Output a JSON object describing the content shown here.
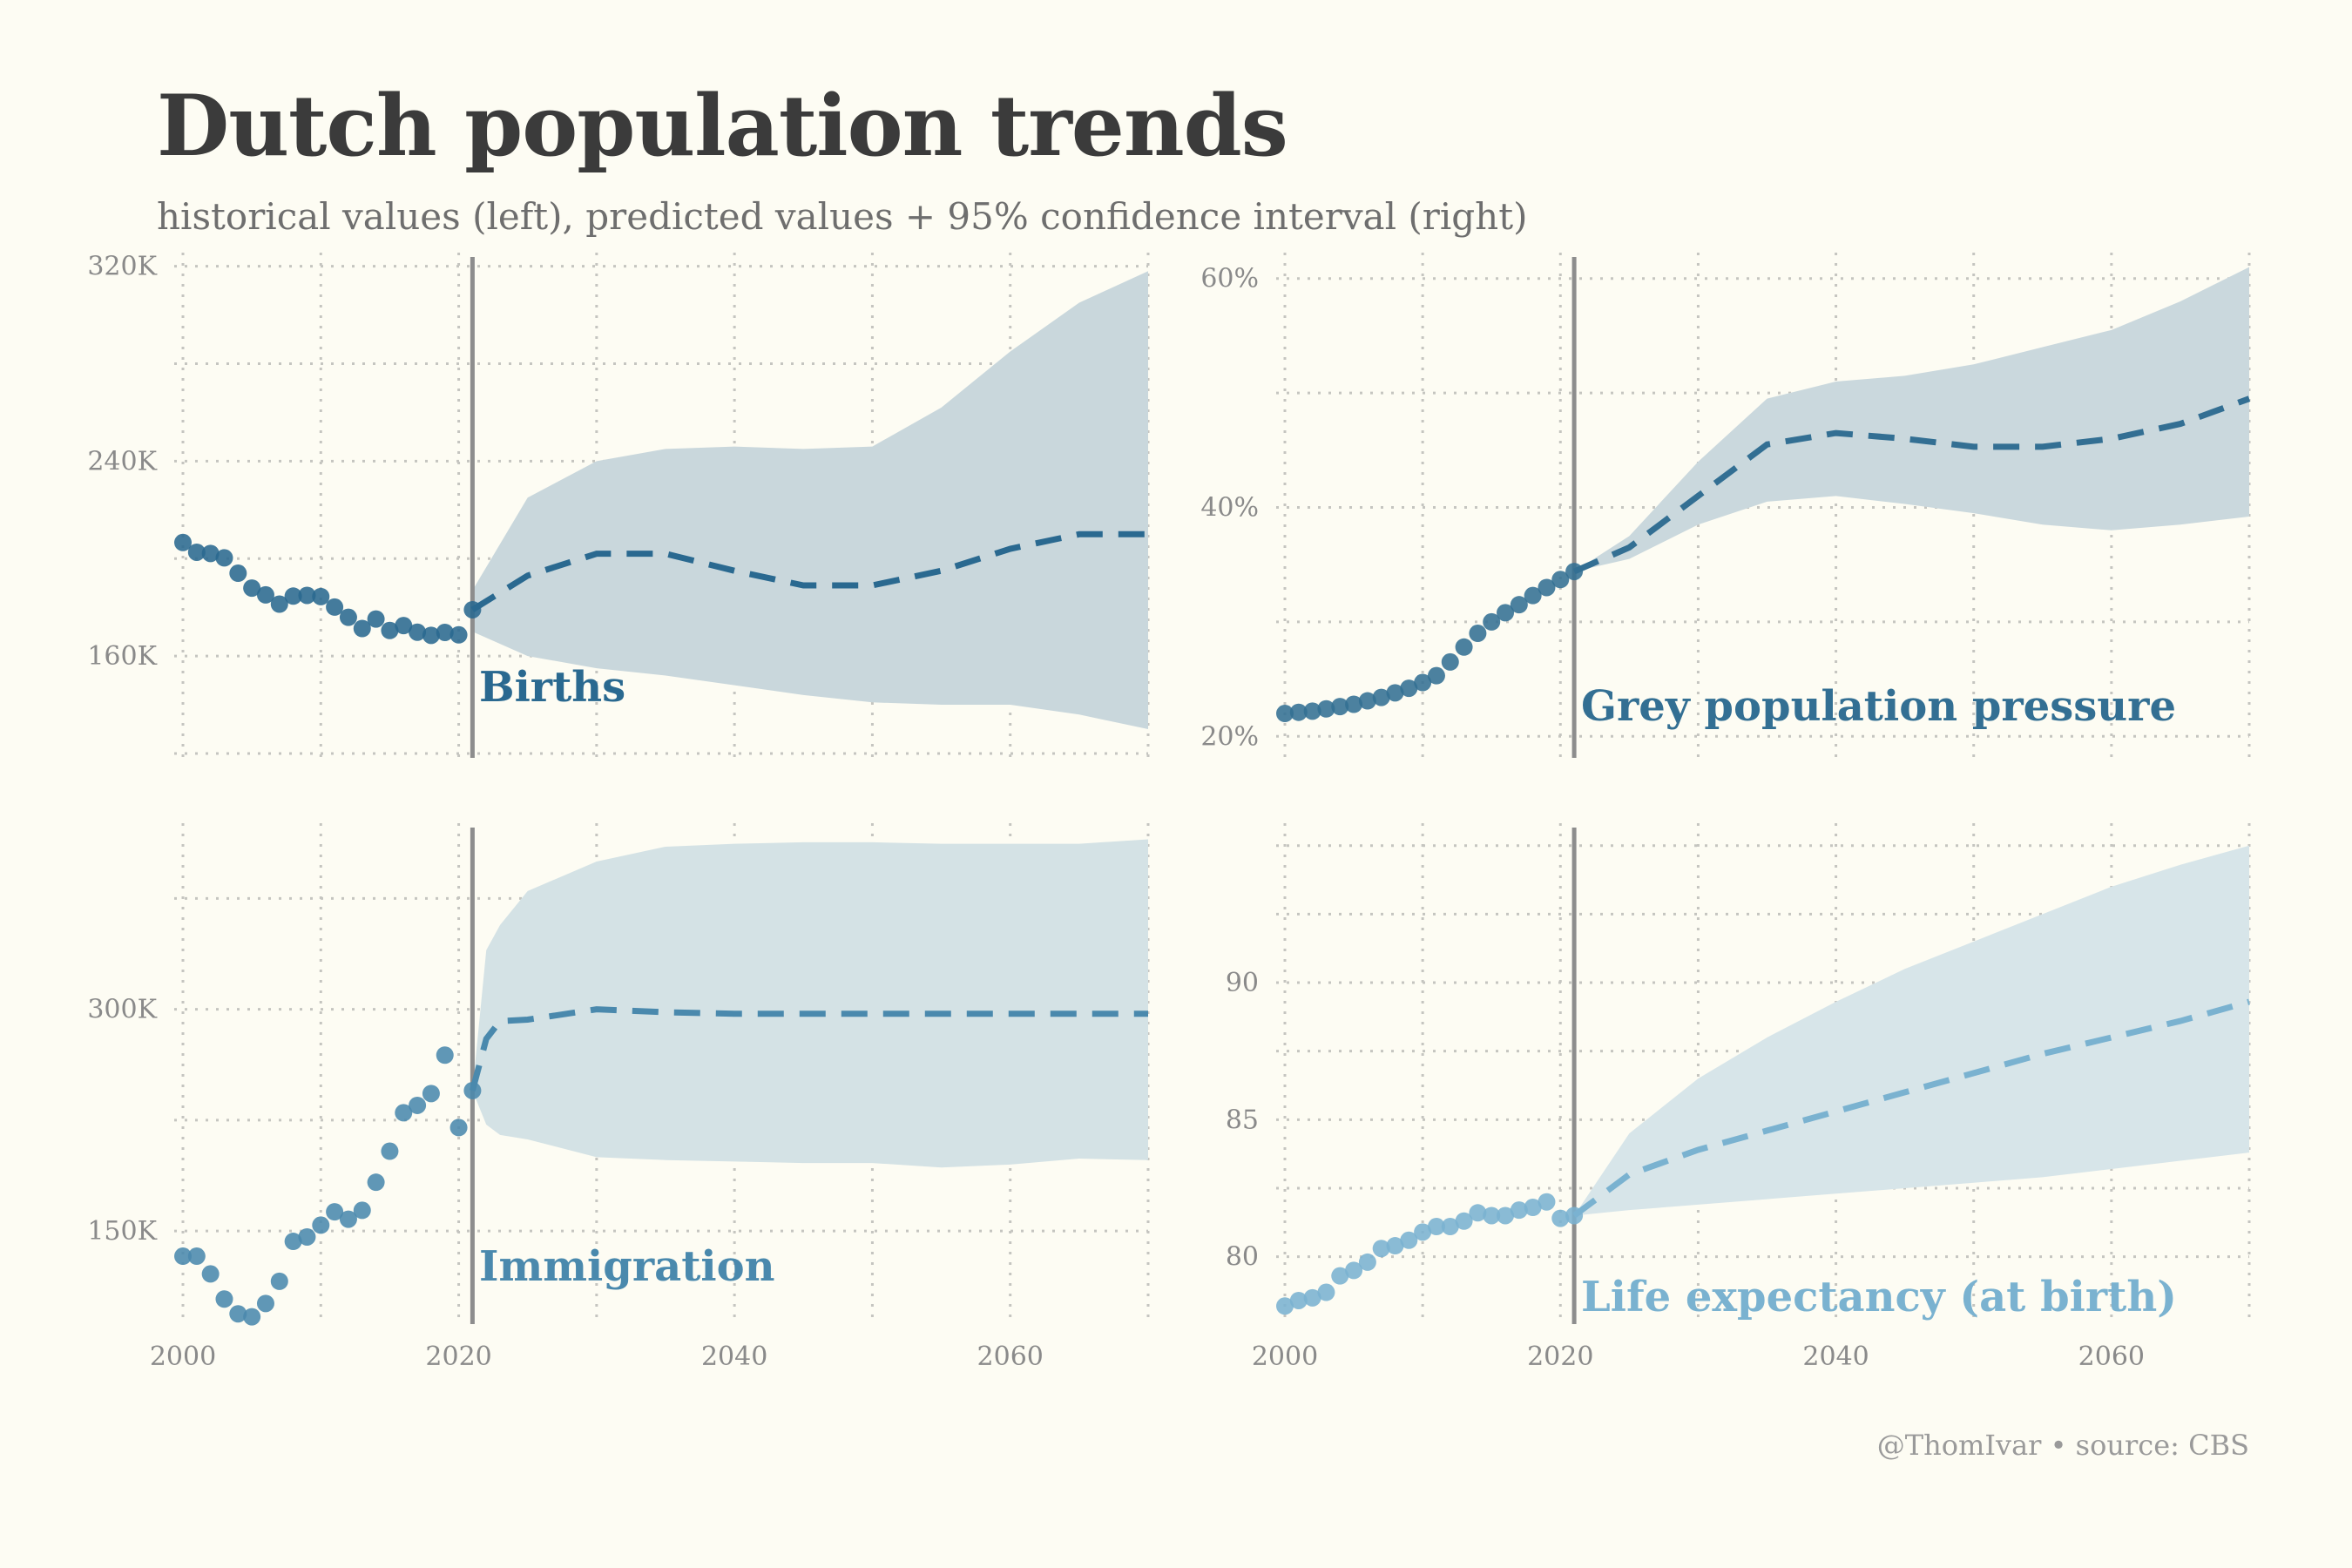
{
  "title": "Dutch population trends",
  "subtitle": "historical values (left), predicted values + 95% confidence interval (right)",
  "caption": "@ThomIvar • source: CBS",
  "chart_data": [
    {
      "type": "line",
      "title": "Births",
      "color": "#2a6990",
      "band_color": "#c9d7dc",
      "y_tick_labels": [
        "160K",
        "240K",
        "320K"
      ],
      "y_ticks": [
        160000,
        240000,
        320000
      ],
      "x_tick_labels": [],
      "ylim": [
        120000,
        322000
      ],
      "xlim": [
        2000,
        2070
      ],
      "divider_x": 2021,
      "grid": "dotted",
      "historical": {
        "x": [
          2000,
          2001,
          2002,
          2003,
          2004,
          2005,
          2006,
          2007,
          2008,
          2009,
          2010,
          2011,
          2012,
          2013,
          2014,
          2015,
          2016,
          2017,
          2018,
          2019,
          2020,
          2021
        ],
        "y": [
          206600,
          202600,
          202100,
          200300,
          194000,
          187900,
          185100,
          181300,
          184600,
          184900,
          184400,
          180100,
          175900,
          171300,
          175200,
          170500,
          172500,
          169800,
          168500,
          169700,
          168700,
          179000
        ]
      },
      "forecast": {
        "x": [
          2021,
          2025,
          2030,
          2035,
          2040,
          2045,
          2050,
          2055,
          2060,
          2065,
          2070
        ],
        "y": [
          179000,
          193000,
          202000,
          202000,
          195000,
          189000,
          189000,
          195000,
          204000,
          210000,
          210000
        ],
        "lower": [
          170000,
          160000,
          155000,
          152000,
          148000,
          144000,
          141000,
          140000,
          140000,
          136000,
          130000
        ],
        "upper": [
          187000,
          225000,
          240000,
          245000,
          246000,
          245000,
          246000,
          262000,
          285000,
          305000,
          318000
        ]
      }
    },
    {
      "type": "line",
      "title": "Grey population pressure",
      "color": "#336f93",
      "band_color": "#cad8dd",
      "y_tick_labels": [
        "20%",
        "40%",
        "60%"
      ],
      "y_ticks": [
        20,
        40,
        60
      ],
      "x_tick_labels": [],
      "ylim": [
        18.5,
        61.5
      ],
      "xlim": [
        2000,
        2070
      ],
      "divider_x": 2021,
      "grid": "dotted",
      "historical": {
        "x": [
          2000,
          2001,
          2002,
          2003,
          2004,
          2005,
          2006,
          2007,
          2008,
          2009,
          2010,
          2011,
          2012,
          2013,
          2014,
          2015,
          2016,
          2017,
          2018,
          2019,
          2020,
          2021
        ],
        "y": [
          22.0,
          22.1,
          22.2,
          22.4,
          22.6,
          22.8,
          23.1,
          23.4,
          23.8,
          24.2,
          24.7,
          25.3,
          26.5,
          27.8,
          29.0,
          30.0,
          30.8,
          31.5,
          32.3,
          33.0,
          33.7,
          34.4
        ]
      },
      "forecast": {
        "x": [
          2021,
          2025,
          2030,
          2035,
          2040,
          2045,
          2050,
          2055,
          2060,
          2065,
          2070
        ],
        "y": [
          34.4,
          36.5,
          41.0,
          45.5,
          46.5,
          46.0,
          45.3,
          45.3,
          46.0,
          47.3,
          49.5
        ],
        "lower": [
          34.4,
          35.5,
          38.5,
          40.5,
          41.0,
          40.3,
          39.5,
          38.5,
          38.0,
          38.5,
          39.2
        ],
        "upper": [
          34.4,
          37.5,
          44.0,
          49.5,
          51.0,
          51.5,
          52.5,
          54.0,
          55.5,
          58.0,
          61.0
        ]
      }
    },
    {
      "type": "line",
      "title": "Immigration",
      "color": "#4a89ad",
      "band_color": "#d4e2e5",
      "y_tick_labels": [
        "150K",
        "300K"
      ],
      "y_ticks": [
        150000,
        300000
      ],
      "x_tick_labels": [
        "2000",
        "2020",
        "2040",
        "2060"
      ],
      "x_ticks": [
        2000,
        2020,
        2040,
        2060
      ],
      "ylim": [
        90000,
        420000
      ],
      "xlim": [
        2000,
        2070
      ],
      "divider_x": 2021,
      "grid": "dotted",
      "historical": {
        "x": [
          2000,
          2001,
          2002,
          2003,
          2004,
          2005,
          2006,
          2007,
          2008,
          2009,
          2010,
          2011,
          2012,
          2013,
          2014,
          2015,
          2016,
          2017,
          2018,
          2019,
          2020,
          2021
        ],
        "y": [
          133000,
          133000,
          121000,
          104000,
          94000,
          92000,
          101000,
          116000,
          143000,
          146000,
          154000,
          163000,
          158000,
          164000,
          183000,
          204000,
          230000,
          235000,
          243000,
          269000,
          220000,
          245000
        ]
      },
      "forecast": {
        "x": [
          2021,
          2022,
          2023,
          2025,
          2030,
          2035,
          2040,
          2045,
          2050,
          2055,
          2060,
          2065,
          2070
        ],
        "y": [
          245000,
          280000,
          292000,
          293000,
          300000,
          298000,
          297000,
          297000,
          297000,
          297000,
          297000,
          297000,
          297000
        ],
        "lower": [
          245000,
          222000,
          215000,
          212000,
          200000,
          198000,
          197000,
          196000,
          196000,
          193000,
          195000,
          199000,
          198000
        ],
        "upper": [
          245000,
          340000,
          357000,
          380000,
          400000,
          410000,
          412000,
          413000,
          413000,
          412000,
          412000,
          412000,
          415000
        ]
      }
    },
    {
      "type": "line",
      "title": "Life expectancy (at birth)",
      "color": "#7ab2d0",
      "band_color": "#d7e5e9",
      "y_tick_labels": [
        "80",
        "85",
        "90"
      ],
      "y_ticks": [
        80,
        85,
        90
      ],
      "x_tick_labels": [
        "2000",
        "2020",
        "2040",
        "2060"
      ],
      "x_ticks": [
        2000,
        2020,
        2040,
        2060
      ],
      "ylim": [
        77.7,
        95.5
      ],
      "xlim": [
        2000,
        2070
      ],
      "divider_x": 2021,
      "grid": "dotted",
      "historical": {
        "x": [
          2000,
          2001,
          2002,
          2003,
          2004,
          2005,
          2006,
          2007,
          2008,
          2009,
          2010,
          2011,
          2012,
          2013,
          2014,
          2015,
          2016,
          2017,
          2018,
          2019,
          2020,
          2021
        ],
        "y": [
          78.2,
          78.4,
          78.5,
          78.7,
          79.3,
          79.5,
          79.8,
          80.3,
          80.4,
          80.6,
          80.9,
          81.1,
          81.1,
          81.3,
          81.6,
          81.5,
          81.5,
          81.7,
          81.8,
          82.0,
          81.4,
          81.5
        ]
      },
      "forecast": {
        "x": [
          2021,
          2025,
          2030,
          2035,
          2040,
          2045,
          2050,
          2055,
          2060,
          2065,
          2070
        ],
        "y": [
          81.5,
          83.0,
          83.9,
          84.6,
          85.3,
          86.0,
          86.7,
          87.4,
          88.0,
          88.6,
          89.3
        ],
        "lower": [
          81.5,
          81.7,
          81.9,
          82.1,
          82.3,
          82.5,
          82.7,
          82.9,
          83.2,
          83.5,
          83.8
        ],
        "upper": [
          81.5,
          84.5,
          86.5,
          88.0,
          89.3,
          90.5,
          91.5,
          92.5,
          93.5,
          94.3,
          95.0
        ]
      }
    }
  ]
}
